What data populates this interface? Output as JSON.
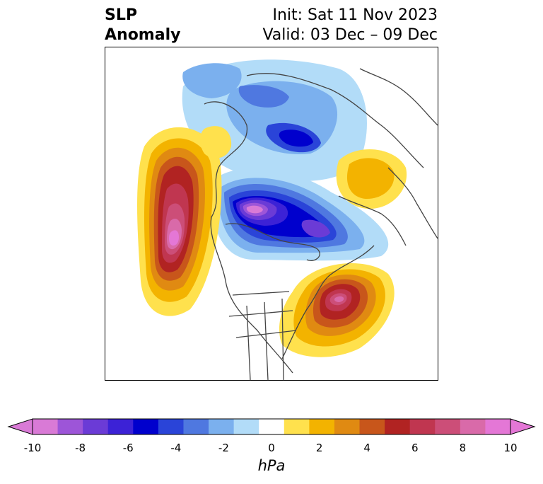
{
  "title": {
    "left_line1": "SLP",
    "left_line2": "Anomaly",
    "right_line1": "Init: Sat 11 Nov 2023",
    "right_line2": "Valid: 03 Dec – 09 Dec"
  },
  "colorbar": {
    "unit": "hPa",
    "ticks": [
      "-10",
      "-8",
      "-6",
      "-4",
      "-2",
      "0",
      "2",
      "4",
      "6",
      "8",
      "10"
    ],
    "colors": [
      "#d97ad6",
      "#9d55d8",
      "#6b3bd6",
      "#3c22d6",
      "#0000cd",
      "#2a44d8",
      "#4f78e0",
      "#7bb0ee",
      "#b2dcf8",
      "#ffffff",
      "#ffe14d",
      "#f3b300",
      "#e08a12",
      "#c8561b",
      "#b12322",
      "#c03650",
      "#cc4e78",
      "#d96aa9",
      "#e477d6"
    ],
    "extend_low_color": "#d97ad6",
    "extend_high_color": "#e477d6"
  }
}
